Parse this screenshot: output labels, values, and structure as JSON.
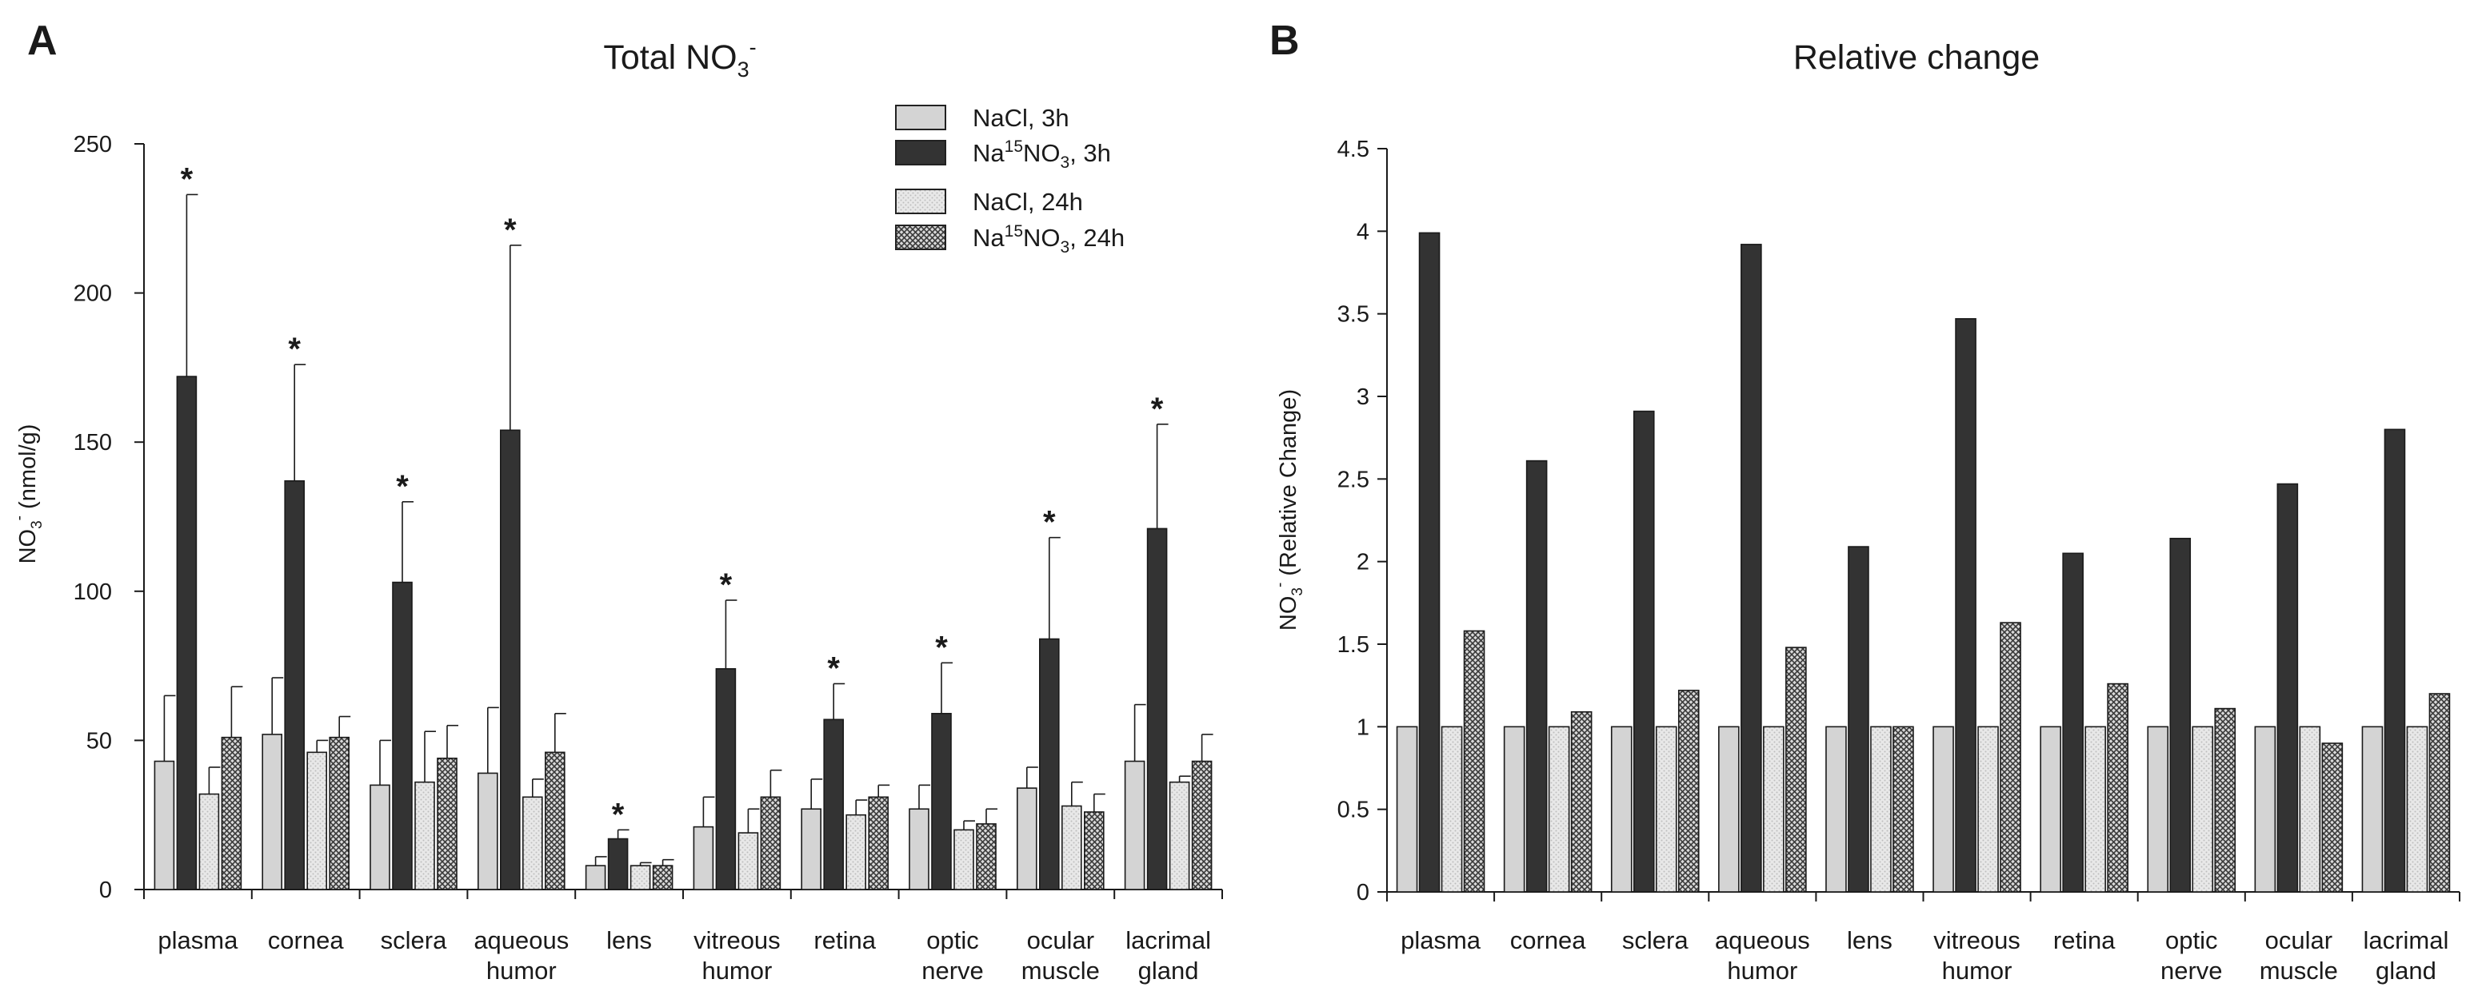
{
  "colors": {
    "nacl_3h": "#d4d4d4",
    "na15no3_3h": "#333333",
    "nacl_24h": "#e6e6e6 dotted",
    "na15no3_24h": "#aaaaaa crosshatch",
    "axis": "#1a1a1a"
  },
  "legend": {
    "items": [
      {
        "base": "NaCl, 3h",
        "sup": "",
        "sub": "",
        "tail": ""
      },
      {
        "base": "Na",
        "sup": "15",
        "mid": "NO",
        "sub": "3",
        "tail": ", 3h"
      },
      {
        "base": "NaCl, 24h",
        "sup": "",
        "sub": "",
        "tail": ""
      },
      {
        "base": "Na",
        "sup": "15",
        "mid": "NO",
        "sub": "3",
        "tail": ", 24h"
      }
    ]
  },
  "chart_data": [
    {
      "type": "bar",
      "panel": "A",
      "title": {
        "base": "Total NO",
        "sub": "3",
        "sup": "-"
      },
      "ylabel": {
        "base": "NO",
        "sub": "3",
        "sup": "-",
        "tail": " (nmol/g)"
      },
      "ylim": [
        0,
        250
      ],
      "yticks": [
        "0",
        "50",
        "100",
        "150",
        "200",
        "250"
      ],
      "categories": [
        [
          "plasma"
        ],
        [
          "cornea"
        ],
        [
          "sclera"
        ],
        [
          "aqueous",
          "humor"
        ],
        [
          "lens"
        ],
        [
          "vitreous",
          "humor"
        ],
        [
          "retina"
        ],
        [
          "optic",
          "nerve"
        ],
        [
          "ocular",
          "muscle"
        ],
        [
          "lacrimal",
          "gland"
        ]
      ],
      "series": [
        {
          "name": "NaCl, 3h",
          "values": [
            43,
            52,
            35,
            39,
            8,
            21,
            27,
            27,
            34,
            43
          ],
          "errors": [
            22,
            19,
            15,
            22,
            3,
            10,
            10,
            8,
            7,
            19
          ]
        },
        {
          "name": "Na15NO3, 3h",
          "values": [
            172,
            137,
            103,
            154,
            17,
            74,
            57,
            59,
            84,
            121
          ],
          "errors": [
            61,
            39,
            27,
            62,
            3,
            23,
            12,
            17,
            34,
            35
          ]
        },
        {
          "name": "NaCl, 24h",
          "values": [
            32,
            46,
            36,
            31,
            8,
            19,
            25,
            20,
            28,
            36
          ],
          "errors": [
            9,
            4,
            17,
            6,
            1,
            8,
            5,
            3,
            8,
            2
          ]
        },
        {
          "name": "Na15NO3, 24h",
          "values": [
            51,
            51,
            44,
            46,
            8,
            31,
            31,
            22,
            26,
            43
          ],
          "errors": [
            17,
            7,
            11,
            13,
            2,
            9,
            4,
            5,
            6,
            9
          ]
        }
      ],
      "significance": {
        "series": 1,
        "mark": "*",
        "categories": [
          0,
          1,
          2,
          3,
          4,
          5,
          6,
          7,
          8,
          9
        ]
      }
    },
    {
      "type": "bar",
      "panel": "B",
      "title": {
        "base": "Relative change",
        "sub": "",
        "sup": ""
      },
      "ylabel": {
        "base": "NO",
        "sub": "3",
        "sup": "-",
        "tail": " (Relative Change)"
      },
      "ylim": [
        0,
        4.5
      ],
      "yticks": [
        "0",
        "0.5",
        "1",
        "1.5",
        "2",
        "2.5",
        "3",
        "3.5",
        "4",
        "4.5"
      ],
      "categories": [
        [
          "plasma"
        ],
        [
          "cornea"
        ],
        [
          "sclera"
        ],
        [
          "aqueous",
          "humor"
        ],
        [
          "lens"
        ],
        [
          "vitreous",
          "humor"
        ],
        [
          "retina"
        ],
        [
          "optic",
          "nerve"
        ],
        [
          "ocular",
          "muscle"
        ],
        [
          "lacrimal",
          "gland"
        ]
      ],
      "series": [
        {
          "name": "NaCl, 3h",
          "values": [
            1,
            1,
            1,
            1,
            1,
            1,
            1,
            1,
            1,
            1
          ]
        },
        {
          "name": "Na15NO3, 3h",
          "values": [
            3.99,
            2.61,
            2.91,
            3.92,
            2.09,
            3.47,
            2.05,
            2.14,
            2.47,
            2.8
          ]
        },
        {
          "name": "NaCl, 24h",
          "values": [
            1,
            1,
            1,
            1,
            1,
            1,
            1,
            1,
            1,
            1
          ]
        },
        {
          "name": "Na15NO3, 24h",
          "values": [
            1.58,
            1.09,
            1.22,
            1.48,
            1.0,
            1.63,
            1.26,
            1.11,
            0.9,
            1.2
          ]
        }
      ]
    }
  ]
}
